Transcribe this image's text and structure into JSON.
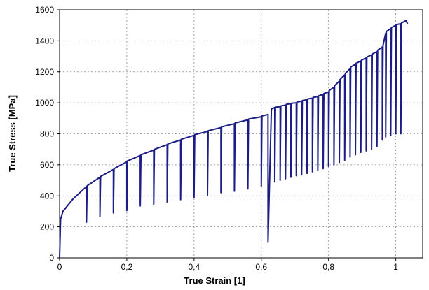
{
  "chart_data": {
    "type": "line",
    "xlabel": "True Strain [1]",
    "ylabel": "True Stress [MPa]",
    "xlim": [
      0,
      1.08
    ],
    "ylim": [
      0,
      1600
    ],
    "xticks": [
      0,
      {
        "value": 0.2,
        "label": "0,2"
      },
      {
        "value": 0.4,
        "label": "0,4"
      },
      {
        "value": 0.6,
        "label": "0,6"
      },
      {
        "value": 0.8,
        "label": "0,8"
      },
      1
    ],
    "yticks": [
      0,
      200,
      400,
      600,
      800,
      1000,
      1200,
      1400,
      1600
    ],
    "grid": true,
    "series": [
      {
        "color": "#1c1c86",
        "x": [
          0,
          0.003,
          0.01,
          0.04,
          0.08,
          0.08,
          0.082,
          0.12,
          0.12,
          0.122,
          0.16,
          0.16,
          0.162,
          0.2,
          0.2,
          0.202,
          0.24,
          0.24,
          0.242,
          0.28,
          0.28,
          0.282,
          0.32,
          0.32,
          0.322,
          0.36,
          0.36,
          0.362,
          0.4,
          0.4,
          0.402,
          0.44,
          0.44,
          0.442,
          0.48,
          0.48,
          0.482,
          0.52,
          0.52,
          0.522,
          0.56,
          0.56,
          0.562,
          0.6,
          0.6,
          0.602,
          0.62,
          0.62,
          0.63,
          0.64,
          0.64,
          0.642,
          0.656,
          0.656,
          0.658,
          0.672,
          0.672,
          0.674,
          0.688,
          0.688,
          0.69,
          0.704,
          0.704,
          0.706,
          0.72,
          0.72,
          0.722,
          0.736,
          0.736,
          0.738,
          0.752,
          0.752,
          0.754,
          0.768,
          0.768,
          0.77,
          0.784,
          0.784,
          0.786,
          0.8,
          0.8,
          0.802,
          0.816,
          0.816,
          0.818,
          0.832,
          0.832,
          0.834,
          0.848,
          0.848,
          0.85,
          0.864,
          0.864,
          0.866,
          0.88,
          0.88,
          0.882,
          0.896,
          0.896,
          0.898,
          0.912,
          0.912,
          0.914,
          0.928,
          0.928,
          0.93,
          0.944,
          0.944,
          0.946,
          0.96,
          0.96,
          0.962,
          0.97,
          0.97,
          0.972,
          0.985,
          0.985,
          0.987,
          1.0,
          1.0,
          1.002,
          1.015,
          1.015,
          1.017,
          1.03,
          1.035
        ],
        "values": [
          0,
          250,
          300,
          380,
          460,
          230,
          465,
          520,
          265,
          525,
          570,
          290,
          575,
          620,
          305,
          625,
          660,
          335,
          665,
          695,
          345,
          700,
          730,
          360,
          735,
          760,
          375,
          765,
          790,
          390,
          795,
          815,
          405,
          820,
          840,
          420,
          845,
          865,
          430,
          870,
          890,
          445,
          895,
          910,
          460,
          915,
          925,
          100,
          960,
          970,
          490,
          972,
          975,
          500,
          980,
          985,
          510,
          990,
          995,
          520,
          997,
          1000,
          530,
          1005,
          1010,
          535,
          1015,
          1020,
          545,
          1025,
          1030,
          555,
          1035,
          1040,
          565,
          1045,
          1055,
          575,
          1060,
          1070,
          590,
          1080,
          1100,
          600,
          1110,
          1140,
          615,
          1150,
          1180,
          630,
          1190,
          1220,
          650,
          1230,
          1250,
          665,
          1255,
          1270,
          680,
          1275,
          1290,
          690,
          1295,
          1310,
          700,
          1315,
          1330,
          720,
          1340,
          1360,
          760,
          1370,
          1450,
          780,
          1460,
          1480,
          790,
          1485,
          1500,
          800,
          1505,
          1510,
          800,
          1515,
          1530,
          1510
        ]
      }
    ]
  }
}
